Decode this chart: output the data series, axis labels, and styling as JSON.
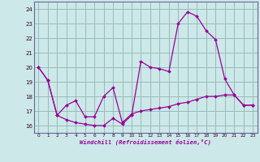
{
  "xlabel": "Windchill (Refroidissement éolien,°C)",
  "background_color": "#cce8e8",
  "grid_color": "#99bbbb",
  "line_color": "#990099",
  "spine_color": "#666699",
  "xlim": [
    -0.5,
    23.5
  ],
  "ylim": [
    15.5,
    24.5
  ],
  "yticks": [
    16,
    17,
    18,
    19,
    20,
    21,
    22,
    23,
    24
  ],
  "xticks": [
    0,
    1,
    2,
    3,
    4,
    5,
    6,
    7,
    8,
    9,
    10,
    11,
    12,
    13,
    14,
    15,
    16,
    17,
    18,
    19,
    20,
    21,
    22,
    23
  ],
  "series1_x": [
    0,
    1,
    2,
    3,
    4,
    5,
    6,
    7,
    8,
    9,
    10,
    11,
    12,
    13,
    14,
    15,
    16,
    17,
    18,
    19,
    20,
    21,
    22,
    23
  ],
  "series1_y": [
    20.0,
    19.1,
    16.7,
    16.4,
    16.2,
    16.1,
    16.0,
    16.0,
    16.5,
    16.1,
    16.7,
    20.4,
    20.0,
    19.9,
    19.7,
    23.0,
    23.8,
    23.5,
    22.5,
    21.9,
    19.2,
    18.1,
    17.4,
    17.4
  ],
  "series2_x": [
    0,
    1,
    2,
    3,
    4,
    5,
    6,
    7,
    8,
    9,
    10,
    11,
    12,
    13,
    14,
    15,
    16,
    17,
    18,
    19,
    20,
    21,
    22,
    23
  ],
  "series2_y": [
    20.0,
    19.1,
    16.7,
    17.4,
    17.7,
    16.6,
    16.6,
    18.0,
    18.6,
    16.2,
    16.8,
    17.0,
    17.1,
    17.2,
    17.3,
    17.5,
    17.6,
    17.8,
    18.0,
    18.0,
    18.1,
    18.1,
    17.4,
    17.4
  ]
}
